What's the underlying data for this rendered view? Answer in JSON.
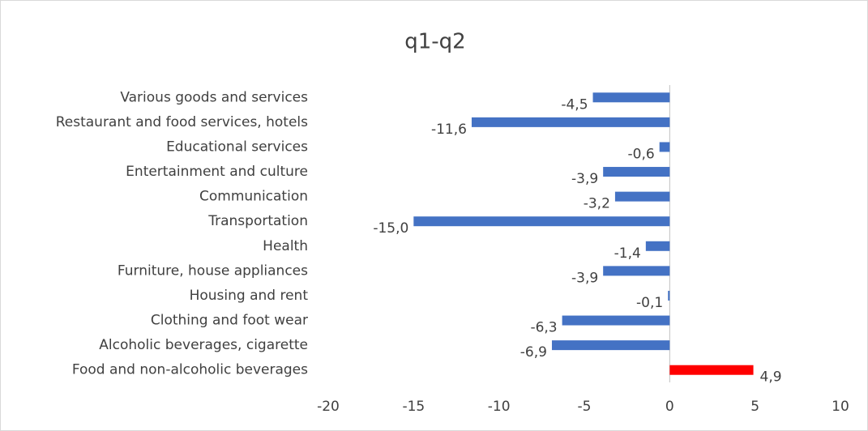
{
  "chart_data": {
    "type": "bar",
    "orientation": "horizontal",
    "title": "q1-q2",
    "categories": [
      "Various goods and services",
      "Restaurant and food services, hotels",
      "Educational services",
      "Entertainment and culture",
      "Communication",
      "Transportation",
      "Health",
      "Furniture, house appliances",
      "Housing and rent",
      "Clothing and foot wear",
      "Alcoholic beverages, cigarette",
      "Food and non-alcoholic beverages"
    ],
    "values": [
      -4.5,
      -11.6,
      -0.6,
      -3.9,
      -3.2,
      -15.0,
      -1.4,
      -3.9,
      -0.1,
      -6.3,
      -6.9,
      4.9
    ],
    "value_labels": [
      "-4,5",
      "-11,6",
      "-0,6",
      "-3,9",
      "-3,2",
      "-15,0",
      "-1,4",
      "-3,9",
      "-0,1",
      "-6,3",
      "-6,9",
      "4,9"
    ],
    "colors": [
      "#4472c4",
      "#4472c4",
      "#4472c4",
      "#4472c4",
      "#4472c4",
      "#4472c4",
      "#4472c4",
      "#4472c4",
      "#4472c4",
      "#4472c4",
      "#4472c4",
      "#ff0000"
    ],
    "xlim": [
      -20,
      10
    ],
    "xticks": [
      -20,
      -15,
      -10,
      -5,
      0,
      5,
      10
    ],
    "grid": false
  }
}
